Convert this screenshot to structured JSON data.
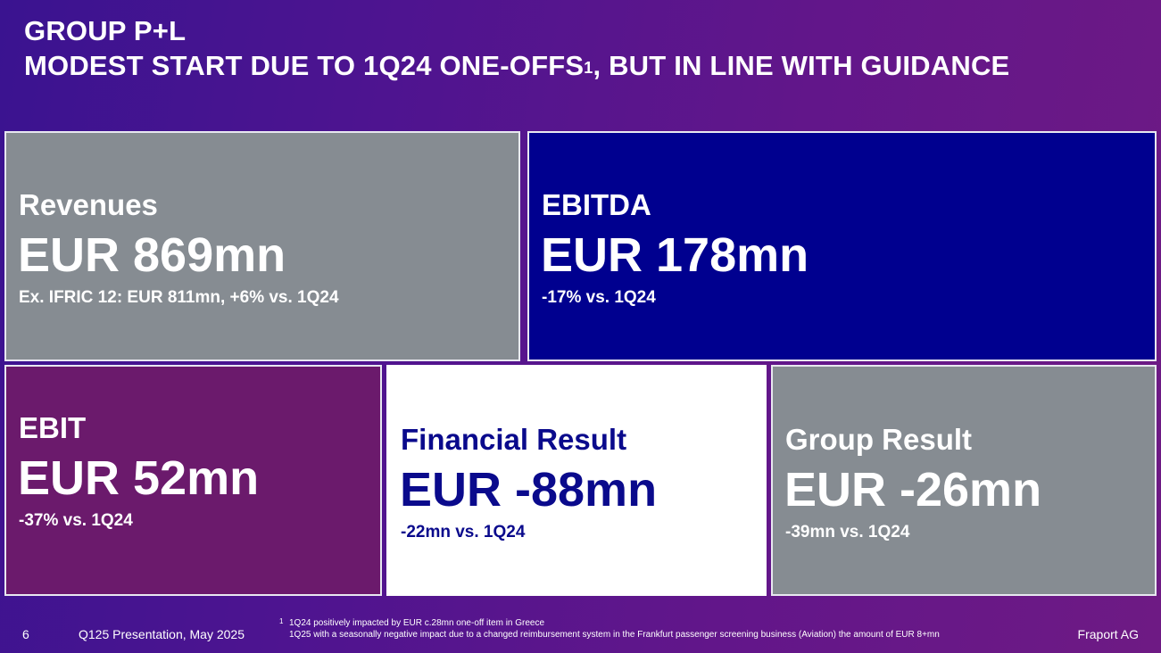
{
  "header": {
    "title_line1": "GROUP P+L",
    "title_line2": "MODEST START DUE TO 1Q24 ONE-OFFS",
    "title_sup": "1",
    "title_line2_tail": ", BUT IN LINE WITH GUIDANCE"
  },
  "tiles": {
    "revenues": {
      "label": "Revenues",
      "value": "EUR 869mn",
      "sub": "Ex. IFRIC 12:  EUR 811mn,  +6% vs. 1Q24",
      "color": "#868c92"
    },
    "ebitda": {
      "label": "EBITDA",
      "value": "EUR 178mn",
      "sub": "-17% vs. 1Q24",
      "color": "#00008f"
    },
    "ebit": {
      "label": "EBIT",
      "value": "EUR 52mn",
      "sub": "-37% vs. 1Q24",
      "color": "#6b1a6c"
    },
    "financial_result": {
      "label": "Financial Result",
      "value": "EUR -88mn",
      "sub": "-22mn vs. 1Q24",
      "color": "#ffffff"
    },
    "group_result": {
      "label": "Group Result",
      "value": "EUR -26mn",
      "sub": "-39mn vs. 1Q24",
      "color": "#868c92"
    }
  },
  "footer": {
    "page_number": "6",
    "presentation": "Q125 Presentation, May 2025",
    "footnote_marker": "1",
    "footnote_line1": "1Q24 positively impacted by EUR c.28mn one-off item in Greece",
    "footnote_line2": "1Q25 with a seasonally negative impact due to a changed reimbursement system in the Frankfurt passenger screening business (Aviation) the amount of EUR 8+mn",
    "company": "Fraport AG"
  }
}
